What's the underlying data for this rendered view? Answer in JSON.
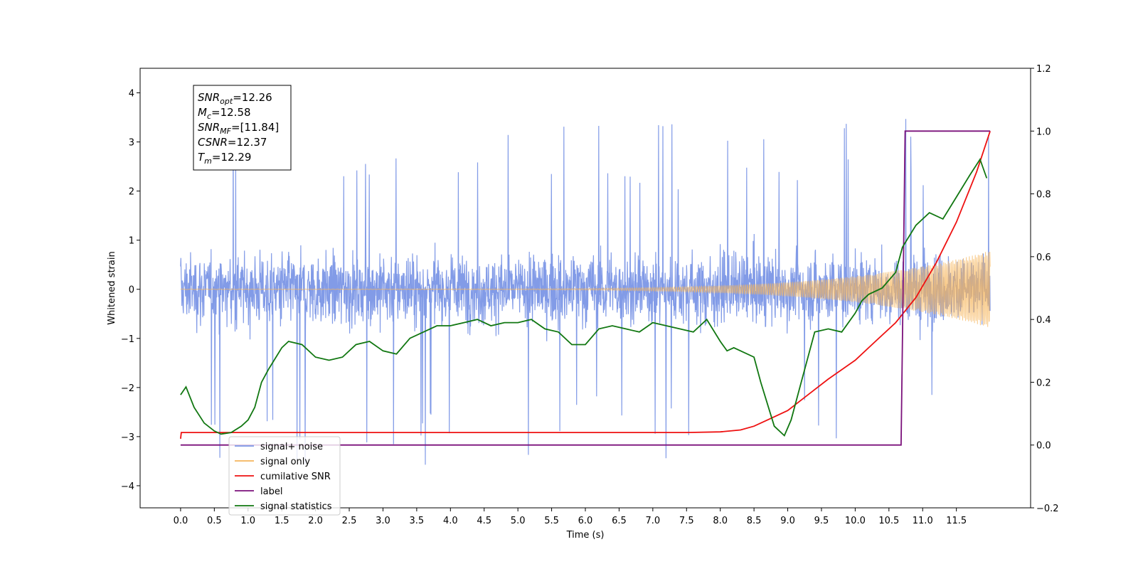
{
  "chart_data": {
    "type": "line",
    "xlabel": "Time (s)",
    "ylabel": "Whitened strain",
    "xlim": [
      -0.6,
      12.6
    ],
    "ylim": [
      -4.45,
      4.5
    ],
    "y2lim": [
      -0.2,
      1.2
    ],
    "x_ticks": [
      0.0,
      0.5,
      1.0,
      1.5,
      2.0,
      2.5,
      3.0,
      3.5,
      4.0,
      4.5,
      5.0,
      5.5,
      6.0,
      6.5,
      7.0,
      7.5,
      8.0,
      8.5,
      9.0,
      9.5,
      10.0,
      10.5,
      11.0,
      11.5
    ],
    "y_ticks": [
      -4,
      -3,
      -2,
      -1,
      0,
      1,
      2,
      3,
      4
    ],
    "y2_ticks": [
      -0.2,
      0.0,
      0.2,
      0.4,
      0.6,
      0.8,
      1.0,
      1.2
    ],
    "grid": false,
    "legend_position": "lower-left",
    "annotation": {
      "lines": [
        {
          "base": "SNR",
          "sub": "opt",
          "value": "=12.26"
        },
        {
          "base": "M",
          "sub": "c",
          "value": "=12.58"
        },
        {
          "base": "SNR",
          "sub": "MF",
          "value": "=[11.84]"
        },
        {
          "base": "CSNR",
          "sub": "",
          "value": "=12.37"
        },
        {
          "base": "T",
          "sub": "m",
          "value": "=12.29"
        }
      ]
    },
    "series": [
      {
        "name": "signal+ noise",
        "color": "#7b96e6",
        "axis": "left",
        "kind": "noise",
        "x_range": [
          0.0,
          12.0
        ],
        "band": [
          -1.5,
          1.5
        ],
        "spikes_max": 4.1,
        "spikes_min": -4.05
      },
      {
        "name": "signal only",
        "color": "#f5b55c",
        "axis": "left",
        "kind": "chirp",
        "x_range": [
          0.0,
          12.0
        ],
        "amplitude_start": 0.0,
        "amplitude_end": 0.78
      },
      {
        "name": "cumilative SNR",
        "color": "#ee1111",
        "axis": "right",
        "x": [
          0.0,
          0.01,
          1.0,
          4.0,
          7.5,
          8.0,
          8.3,
          8.5,
          8.7,
          9.0,
          9.3,
          9.6,
          10.0,
          10.3,
          10.6,
          10.9,
          11.2,
          11.5,
          11.8,
          12.0
        ],
        "values": [
          0.02,
          0.04,
          0.04,
          0.04,
          0.04,
          0.042,
          0.048,
          0.06,
          0.08,
          0.11,
          0.16,
          0.21,
          0.27,
          0.33,
          0.39,
          0.47,
          0.58,
          0.71,
          0.87,
          1.0
        ]
      },
      {
        "name": "label",
        "color": "#7b117b",
        "axis": "right",
        "x": [
          0.0,
          10.68,
          10.74,
          12.0
        ],
        "values": [
          0.0,
          0.0,
          1.0,
          1.0
        ]
      },
      {
        "name": "signal statistics",
        "color": "#117711",
        "axis": "right",
        "x": [
          0.0,
          0.08,
          0.2,
          0.35,
          0.5,
          0.6,
          0.75,
          0.9,
          1.0,
          1.1,
          1.2,
          1.3,
          1.5,
          1.6,
          1.8,
          2.0,
          2.2,
          2.4,
          2.6,
          2.8,
          3.0,
          3.2,
          3.4,
          3.6,
          3.8,
          4.0,
          4.2,
          4.4,
          4.6,
          4.8,
          5.0,
          5.2,
          5.4,
          5.6,
          5.8,
          6.0,
          6.2,
          6.4,
          6.6,
          6.8,
          7.0,
          7.2,
          7.4,
          7.6,
          7.8,
          8.0,
          8.1,
          8.2,
          8.3,
          8.5,
          8.6,
          8.8,
          8.95,
          9.05,
          9.2,
          9.4,
          9.6,
          9.8,
          10.0,
          10.1,
          10.2,
          10.4,
          10.6,
          10.7,
          10.9,
          11.1,
          11.3,
          11.5,
          11.7,
          11.85,
          11.95
        ],
        "values": [
          0.16,
          0.185,
          0.12,
          0.07,
          0.045,
          0.035,
          0.04,
          0.06,
          0.08,
          0.12,
          0.2,
          0.24,
          0.31,
          0.33,
          0.32,
          0.28,
          0.27,
          0.28,
          0.32,
          0.33,
          0.3,
          0.29,
          0.34,
          0.36,
          0.38,
          0.38,
          0.39,
          0.4,
          0.38,
          0.39,
          0.39,
          0.4,
          0.37,
          0.36,
          0.32,
          0.32,
          0.37,
          0.38,
          0.37,
          0.36,
          0.39,
          0.38,
          0.37,
          0.36,
          0.4,
          0.33,
          0.3,
          0.31,
          0.3,
          0.28,
          0.2,
          0.06,
          0.03,
          0.08,
          0.2,
          0.36,
          0.37,
          0.36,
          0.42,
          0.46,
          0.48,
          0.5,
          0.55,
          0.63,
          0.7,
          0.74,
          0.72,
          0.79,
          0.86,
          0.91,
          0.85
        ]
      }
    ]
  }
}
